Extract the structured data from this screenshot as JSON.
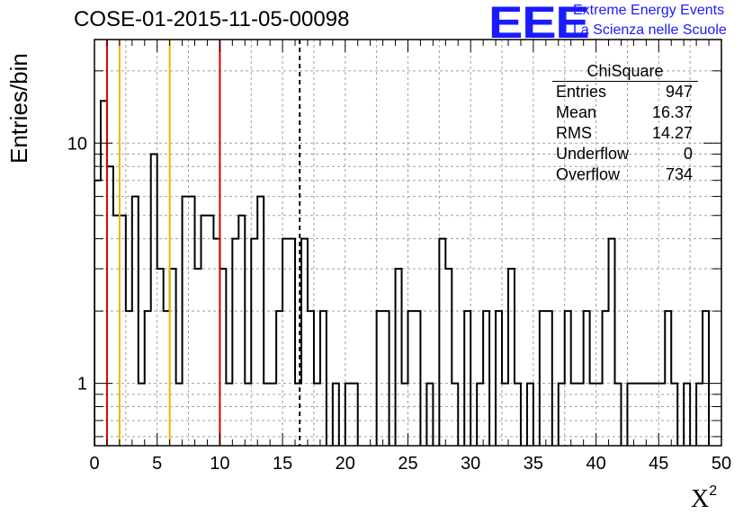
{
  "header": {
    "run_title": "COSE-01-2015-11-05-00098",
    "logo_text": "EEE",
    "logo_line1": "Extreme Energy Events",
    "logo_line2": "La Scienza nelle Scuole"
  },
  "stats_box": {
    "title": "ChiSquare",
    "rows": [
      {
        "label": "Entries",
        "value": "947"
      },
      {
        "label": "Mean",
        "value": "16.37"
      },
      {
        "label": "RMS",
        "value": "14.27"
      },
      {
        "label": "Underflow",
        "value": "0"
      },
      {
        "label": "Overflow",
        "value": "734"
      }
    ]
  },
  "chart_data": {
    "type": "histogram",
    "title": "COSE-01-2015-11-05-00098",
    "xlabel": "X",
    "xlabel_sup": "2",
    "ylabel": "Entries/bin",
    "xlim": [
      0,
      50
    ],
    "ylim": [
      0.55,
      27
    ],
    "y_scale": "log",
    "grid": true,
    "bin_width": 0.5,
    "x_ticks": [
      "0",
      "5",
      "10",
      "15",
      "20",
      "25",
      "30",
      "35",
      "40",
      "45",
      "50"
    ],
    "y_ticks": [
      "1",
      "10"
    ],
    "counts": [
      7,
      15,
      8,
      5,
      5,
      2,
      6,
      1,
      2,
      9,
      3,
      2,
      3,
      1,
      6,
      6,
      3,
      5,
      5,
      4,
      3,
      1,
      4,
      5,
      1,
      4,
      6,
      1,
      1,
      2,
      4,
      4,
      1,
      4,
      2,
      1,
      2,
      0,
      1,
      0,
      1,
      1,
      0,
      0,
      0,
      2,
      2,
      0,
      3,
      1,
      2,
      2,
      0,
      1,
      0,
      4,
      3,
      1,
      0,
      2,
      0,
      1,
      2,
      0,
      2,
      1,
      3,
      1,
      0,
      1,
      0,
      2,
      2,
      0,
      1,
      2,
      1,
      1,
      2,
      1,
      1,
      2,
      4,
      1,
      0,
      1,
      1,
      1,
      1,
      1,
      1,
      2,
      1,
      0,
      1,
      0,
      1,
      2
    ],
    "vlines": [
      {
        "x": 1,
        "color": "#dd0000",
        "style": "solid"
      },
      {
        "x": 2,
        "color": "#f0b400",
        "style": "solid"
      },
      {
        "x": 6,
        "color": "#f0b400",
        "style": "solid"
      },
      {
        "x": 10,
        "color": "#dd0000",
        "style": "solid"
      },
      {
        "x": 16.37,
        "color": "#000000",
        "style": "dashed"
      }
    ]
  }
}
